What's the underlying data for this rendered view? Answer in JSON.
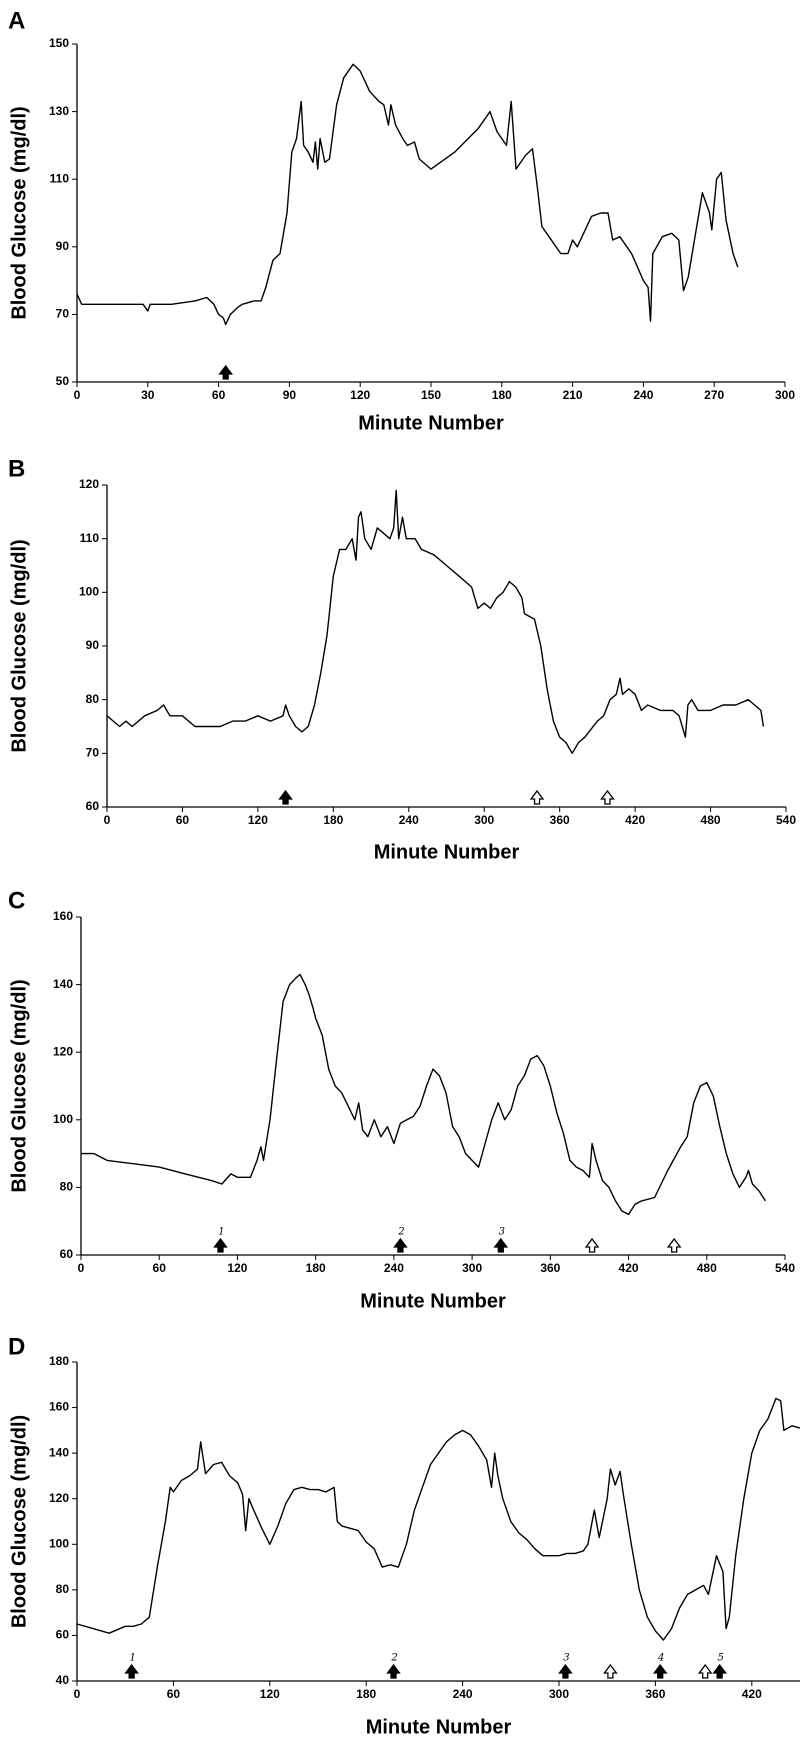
{
  "chart_data": [
    {
      "type": "line",
      "panel": "A",
      "xlabel": "Minute Number",
      "ylabel": "Blood Glucose (mg/dl)",
      "color": "#000000",
      "xlim": [
        0,
        300
      ],
      "xticks": [
        0,
        30,
        60,
        90,
        120,
        150,
        180,
        210,
        240,
        270,
        300
      ],
      "ylim": [
        50,
        150
      ],
      "yticks": [
        50,
        70,
        90,
        110,
        130,
        150
      ],
      "x": [
        0,
        2,
        10,
        20,
        28,
        30,
        31,
        40,
        50,
        55,
        58,
        60,
        62,
        63,
        65,
        68,
        70,
        75,
        78,
        80,
        83,
        86,
        89,
        91,
        93,
        95,
        96,
        98,
        100,
        101,
        102,
        103,
        105,
        107,
        110,
        113,
        117,
        120,
        124,
        128,
        130,
        132,
        133,
        135,
        138,
        140,
        143,
        145,
        150,
        160,
        170,
        175,
        178,
        182,
        184,
        186,
        190,
        193,
        195,
        197,
        200,
        205,
        208,
        210,
        212,
        218,
        222,
        225,
        227,
        230,
        235,
        240,
        242,
        243,
        244,
        248,
        252,
        255,
        257,
        259,
        265,
        268,
        269,
        271,
        273,
        275,
        278,
        280
      ],
      "values": [
        76,
        73,
        73,
        73,
        73,
        71,
        73,
        73,
        74,
        75,
        73,
        70,
        69,
        67,
        70,
        72,
        73,
        74,
        74,
        78,
        86,
        88,
        100,
        118,
        122,
        133,
        120,
        118,
        115,
        121,
        113,
        122,
        115,
        116,
        132,
        140,
        144,
        142,
        136,
        133,
        132,
        126,
        132,
        126,
        122,
        120,
        121,
        116,
        113,
        118,
        125,
        130,
        124,
        120,
        133,
        113,
        117,
        119,
        108,
        96,
        93,
        88,
        88,
        92,
        90,
        99,
        100,
        100,
        92,
        93,
        88,
        80,
        78,
        68,
        88,
        93,
        94,
        92,
        77,
        81,
        106,
        100,
        95,
        110,
        112,
        98,
        88,
        84
      ],
      "arrows": [
        {
          "x": 63,
          "fill": "filled"
        }
      ]
    },
    {
      "type": "line",
      "panel": "B",
      "xlabel": "Minute Number",
      "ylabel": "Blood Glucose (mg/dl)",
      "color": "#000000",
      "xlim": [
        0,
        540
      ],
      "xticks": [
        0,
        60,
        120,
        180,
        240,
        300,
        360,
        420,
        480,
        540
      ],
      "ylim": [
        60,
        120
      ],
      "yticks": [
        60,
        70,
        80,
        90,
        100,
        110,
        120
      ],
      "x": [
        0,
        5,
        10,
        15,
        20,
        30,
        40,
        45,
        50,
        60,
        70,
        80,
        90,
        100,
        110,
        120,
        130,
        140,
        142,
        145,
        150,
        155,
        160,
        165,
        170,
        175,
        180,
        185,
        190,
        195,
        198,
        200,
        202,
        205,
        210,
        215,
        220,
        225,
        228,
        230,
        232,
        235,
        238,
        245,
        250,
        260,
        270,
        280,
        290,
        295,
        300,
        305,
        310,
        315,
        320,
        325,
        330,
        332,
        340,
        345,
        350,
        355,
        360,
        365,
        370,
        375,
        380,
        390,
        395,
        400,
        405,
        408,
        410,
        415,
        420,
        425,
        430,
        440,
        450,
        455,
        460,
        462,
        465,
        470,
        480,
        490,
        500,
        510,
        515,
        520,
        522
      ],
      "values": [
        77,
        76,
        75,
        76,
        75,
        77,
        78,
        79,
        77,
        77,
        75,
        75,
        75,
        76,
        76,
        77,
        76,
        77,
        79,
        77,
        75,
        74,
        75,
        79,
        85,
        92,
        103,
        108,
        108,
        110,
        106,
        114,
        115,
        110,
        108,
        112,
        111,
        110,
        112,
        119,
        110,
        114,
        110,
        110,
        108,
        107,
        105,
        103,
        101,
        97,
        98,
        97,
        99,
        100,
        102,
        101,
        99,
        96,
        95,
        90,
        82,
        76,
        73,
        72,
        70,
        72,
        73,
        76,
        77,
        80,
        81,
        84,
        81,
        82,
        81,
        78,
        79,
        78,
        78,
        77,
        73,
        79,
        80,
        78,
        78,
        79,
        79,
        80,
        79,
        78,
        75
      ],
      "arrows": [
        {
          "x": 142,
          "fill": "filled"
        },
        {
          "x": 342,
          "fill": "open"
        },
        {
          "x": 398,
          "fill": "open"
        }
      ]
    },
    {
      "type": "line",
      "panel": "C",
      "xlabel": "Minute Number",
      "ylabel": "Blood Glucose (mg/dl)",
      "color": "#000000",
      "xlim": [
        0,
        540
      ],
      "xticks": [
        0,
        60,
        120,
        180,
        240,
        300,
        360,
        420,
        480,
        540
      ],
      "ylim": [
        60,
        160
      ],
      "yticks": [
        60,
        80,
        100,
        120,
        140,
        160
      ],
      "x": [
        0,
        10,
        20,
        40,
        60,
        80,
        100,
        108,
        115,
        120,
        130,
        135,
        138,
        140,
        145,
        150,
        155,
        160,
        165,
        168,
        172,
        175,
        178,
        180,
        185,
        190,
        195,
        200,
        205,
        210,
        213,
        216,
        220,
        225,
        230,
        235,
        240,
        245,
        250,
        255,
        260,
        265,
        270,
        275,
        280,
        285,
        290,
        295,
        300,
        305,
        310,
        315,
        320,
        325,
        330,
        335,
        340,
        345,
        350,
        355,
        360,
        365,
        370,
        375,
        380,
        385,
        390,
        392,
        395,
        400,
        405,
        410,
        415,
        420,
        425,
        430,
        440,
        450,
        460,
        465,
        470,
        475,
        480,
        485,
        490,
        495,
        500,
        505,
        510,
        512,
        515,
        520,
        525
      ],
      "values": [
        90,
        90,
        88,
        87,
        86,
        84,
        82,
        81,
        84,
        83,
        83,
        88,
        92,
        88,
        100,
        118,
        135,
        140,
        142,
        143,
        140,
        137,
        133,
        130,
        125,
        115,
        110,
        108,
        104,
        100,
        105,
        97,
        95,
        100,
        95,
        98,
        93,
        99,
        100,
        101,
        104,
        110,
        115,
        113,
        108,
        98,
        95,
        90,
        88,
        86,
        93,
        100,
        105,
        100,
        103,
        110,
        113,
        118,
        119,
        116,
        110,
        102,
        96,
        88,
        86,
        85,
        83,
        93,
        88,
        82,
        80,
        76,
        73,
        72,
        75,
        76,
        77,
        85,
        92,
        95,
        105,
        110,
        111,
        107,
        98,
        90,
        84,
        80,
        83,
        85,
        81,
        79,
        76
      ],
      "arrows": [
        {
          "x": 107,
          "fill": "filled",
          "label": "1"
        },
        {
          "x": 245,
          "fill": "filled",
          "label": "2"
        },
        {
          "x": 322,
          "fill": "filled",
          "label": "3"
        },
        {
          "x": 392,
          "fill": "open"
        },
        {
          "x": 455,
          "fill": "open"
        }
      ]
    },
    {
      "type": "line",
      "panel": "D",
      "xlabel": "Minute Number",
      "ylabel": "Blood Glucose (mg/dl)",
      "color": "#000000",
      "xlim": [
        0,
        450
      ],
      "xticks": [
        0,
        60,
        120,
        180,
        240,
        300,
        360,
        420
      ],
      "ylim": [
        40,
        180
      ],
      "yticks": [
        40,
        60,
        80,
        100,
        120,
        140,
        160,
        180
      ],
      "x": [
        0,
        10,
        20,
        30,
        35,
        40,
        45,
        50,
        55,
        58,
        60,
        65,
        70,
        75,
        77,
        80,
        85,
        90,
        95,
        100,
        103,
        105,
        107,
        110,
        115,
        120,
        125,
        130,
        135,
        140,
        145,
        150,
        155,
        160,
        162,
        165,
        175,
        180,
        185,
        190,
        195,
        200,
        205,
        210,
        215,
        220,
        225,
        230,
        235,
        240,
        245,
        250,
        255,
        258,
        260,
        262,
        265,
        270,
        275,
        280,
        285,
        290,
        300,
        305,
        310,
        315,
        318,
        322,
        325,
        330,
        332,
        335,
        338,
        340,
        345,
        350,
        355,
        360,
        365,
        370,
        375,
        380,
        385,
        390,
        393,
        398,
        402,
        404,
        406,
        410,
        415,
        420,
        425,
        430,
        435,
        438,
        440,
        445,
        450
      ],
      "values": [
        65,
        63,
        61,
        64,
        64,
        65,
        68,
        90,
        110,
        125,
        123,
        128,
        130,
        133,
        145,
        131,
        135,
        136,
        130,
        127,
        122,
        106,
        120,
        115,
        107,
        100,
        108,
        118,
        124,
        125,
        124,
        124,
        123,
        125,
        110,
        108,
        106,
        101,
        98,
        90,
        91,
        90,
        100,
        115,
        125,
        135,
        140,
        145,
        148,
        150,
        148,
        143,
        137,
        125,
        140,
        130,
        120,
        110,
        105,
        102,
        98,
        95,
        95,
        96,
        96,
        97,
        100,
        115,
        103,
        120,
        133,
        126,
        132,
        122,
        100,
        80,
        68,
        62,
        58,
        63,
        72,
        78,
        80,
        82,
        78,
        95,
        88,
        63,
        68,
        95,
        120,
        140,
        150,
        155,
        164,
        163,
        150,
        152,
        151
      ],
      "arrows": [
        {
          "x": 34,
          "fill": "filled",
          "label": "1"
        },
        {
          "x": 197,
          "fill": "filled",
          "label": "2"
        },
        {
          "x": 304,
          "fill": "filled",
          "label": "3"
        },
        {
          "x": 332,
          "fill": "open"
        },
        {
          "x": 363,
          "fill": "filled",
          "label": "4"
        },
        {
          "x": 391,
          "fill": "open"
        },
        {
          "x": 400,
          "fill": "filled",
          "label": "5"
        }
      ]
    }
  ]
}
